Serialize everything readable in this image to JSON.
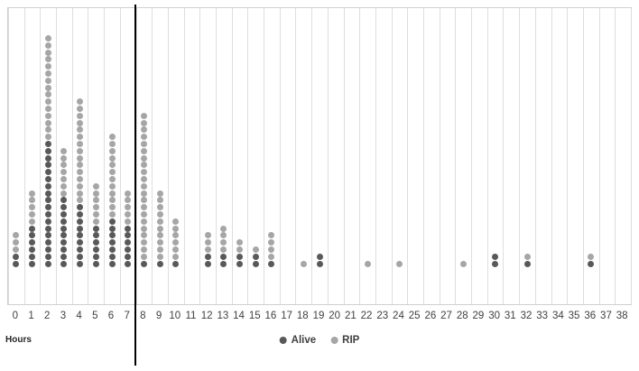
{
  "chart_data": {
    "type": "scatter",
    "subtype": "stacked-dot-plot",
    "title": "",
    "xlabel": "Hours",
    "grid": "vertical",
    "legend_position": "bottom",
    "max_stack": 33,
    "divider_x": 7.5,
    "gridline_color": "#dedede",
    "categories": [
      "0",
      "1",
      "2",
      "3",
      "4",
      "5",
      "6",
      "7",
      "8",
      "9",
      "10",
      "11",
      "12",
      "13",
      "14",
      "15",
      "16",
      "17",
      "18",
      "19",
      "20",
      "21",
      "22",
      "23",
      "24",
      "25",
      "26",
      "27",
      "28",
      "29",
      "30",
      "31",
      "32",
      "33",
      "34",
      "35",
      "36",
      "37",
      "38"
    ],
    "series": [
      {
        "name": "Alive",
        "color": "#595959",
        "counts": [
          2,
          6,
          18,
          10,
          9,
          6,
          7,
          6,
          1,
          1,
          1,
          0,
          2,
          2,
          2,
          2,
          1,
          0,
          0,
          2,
          0,
          0,
          0,
          0,
          0,
          0,
          0,
          0,
          0,
          0,
          2,
          0,
          1,
          0,
          0,
          0,
          1,
          0,
          0
        ]
      },
      {
        "name": "RIP",
        "color": "#a6a6a6",
        "counts": [
          3,
          5,
          15,
          7,
          15,
          6,
          12,
          5,
          21,
          10,
          6,
          0,
          3,
          4,
          2,
          1,
          4,
          0,
          1,
          0,
          0,
          0,
          1,
          0,
          1,
          0,
          0,
          0,
          1,
          0,
          0,
          0,
          1,
          0,
          0,
          0,
          1,
          0,
          0
        ]
      }
    ]
  },
  "legend": {
    "alive_label": "Alive",
    "rip_label": "RIP"
  },
  "axis": {
    "x_title": "Hours"
  }
}
